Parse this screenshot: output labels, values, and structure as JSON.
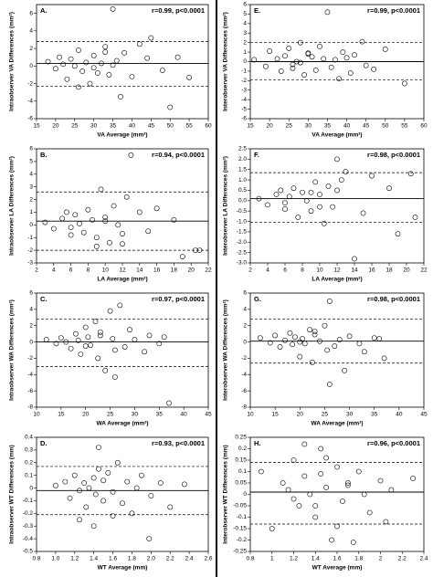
{
  "chart_data": [
    {
      "type": "scatter",
      "label": "A.",
      "annotation": "r=0.99, p<0.0001",
      "xlabel": "VA Average (mm²)",
      "ylabel": "Intraobserver VA Differences (mm²)",
      "xlim": [
        15,
        60
      ],
      "xticks": [
        15,
        20,
        25,
        30,
        35,
        40,
        45,
        50,
        55,
        60
      ],
      "ylim": [
        -6,
        7
      ],
      "yticks": [
        -6,
        -4,
        -2,
        0,
        2,
        4,
        6
      ],
      "mean_line": 0.3,
      "limit_lines": [
        2.8,
        -2.3
      ],
      "x": [
        18,
        20,
        21,
        22,
        23,
        24,
        25,
        26,
        27,
        28,
        29,
        30,
        31,
        32,
        33,
        34,
        35,
        36,
        37,
        38,
        40,
        42,
        44,
        45,
        48,
        50,
        52,
        55,
        30,
        26,
        35,
        33
      ],
      "values": [
        0.5,
        -0.3,
        1.0,
        0.2,
        -1.5,
        0.8,
        0.0,
        1.8,
        -0.6,
        0.4,
        -2.0,
        1.2,
        -0.8,
        0.3,
        2.2,
        -1.0,
        6.5,
        0.6,
        -3.5,
        1.5,
        -1.2,
        2.5,
        0.9,
        3.2,
        -0.5,
        -4.7,
        1.0,
        -1.3,
        -0.2,
        -2.4,
        0.1,
        1.6
      ]
    },
    {
      "type": "scatter",
      "label": "E.",
      "annotation": "r=0.99, p<0.0001",
      "xlabel": "VA Average (mm²)",
      "ylabel": "Interobserver VA Differences (mm²)",
      "xlim": [
        15,
        60
      ],
      "xticks": [
        15,
        20,
        25,
        30,
        35,
        40,
        45,
        50,
        55,
        60
      ],
      "ylim": [
        -6,
        6
      ],
      "yticks": [
        -6,
        -5,
        -4,
        -3,
        -2,
        -1,
        0,
        1,
        2,
        3,
        4,
        5,
        6
      ],
      "mean_line": 0.0,
      "limit_lines": [
        2.0,
        -1.9
      ],
      "x": [
        16,
        19,
        20,
        22,
        23,
        24,
        25,
        26,
        27,
        28,
        29,
        30,
        31,
        32,
        33,
        35,
        36,
        37,
        38,
        39,
        40,
        41,
        42,
        44,
        45,
        47,
        50,
        55,
        30,
        28,
        34,
        26
      ],
      "values": [
        0.2,
        -0.5,
        1.1,
        0.3,
        -1.0,
        0.6,
        1.4,
        -0.3,
        0.0,
        2.0,
        -1.4,
        0.8,
        0.5,
        -0.9,
        1.6,
        5.2,
        -0.6,
        0.2,
        -1.8,
        1.0,
        0.4,
        -1.2,
        0.7,
        2.1,
        -0.4,
        -0.8,
        1.3,
        -2.3,
        0.9,
        -0.1,
        0.3,
        -0.7
      ]
    },
    {
      "type": "scatter",
      "label": "B.",
      "annotation": "r=0.94, p<0.0001",
      "xlabel": "LA Average (mm²)",
      "ylabel": "Intraobserver LA Differences (mm²)",
      "xlim": [
        2,
        22
      ],
      "xticks": [
        2,
        4,
        6,
        8,
        10,
        12,
        14,
        16,
        18,
        20,
        22
      ],
      "ylim": [
        -3,
        6
      ],
      "yticks": [
        -3,
        -2,
        -1,
        0,
        1,
        2,
        3,
        4,
        5,
        6
      ],
      "mean_line": 0.3,
      "limit_lines": [
        2.6,
        -2.0
      ],
      "x": [
        3,
        4,
        5,
        5.5,
        6,
        6.5,
        7,
        7.5,
        8,
        8.5,
        9,
        9.5,
        10,
        10.5,
        11,
        11.5,
        12,
        12.5,
        13,
        14,
        15,
        16,
        18,
        19,
        20.5,
        21,
        6,
        9,
        10,
        12
      ],
      "values": [
        0.2,
        -0.3,
        0.5,
        1.0,
        -0.2,
        0.8,
        0.1,
        -0.6,
        1.2,
        0.4,
        -1.0,
        2.8,
        0.3,
        -1.4,
        1.5,
        0.0,
        -0.7,
        2.2,
        5.5,
        1.0,
        -0.5,
        1.3,
        0.4,
        -2.5,
        -2.0,
        -2.0,
        -0.8,
        -1.7,
        0.6,
        -1.5
      ]
    },
    {
      "type": "scatter",
      "label": "F.",
      "annotation": "r=0.98, p<0.0001",
      "xlabel": "LA Average (mm²)",
      "ylabel": "Interobserver LA Differences (mm²)",
      "xlim": [
        2,
        22
      ],
      "xticks": [
        2,
        4,
        6,
        8,
        10,
        12,
        14,
        16,
        18,
        20,
        22
      ],
      "ylim": [
        -3,
        2.5
      ],
      "yticks": [
        {
          "value": -3,
          "label": "-3.0"
        },
        -2.5,
        {
          "value": -2,
          "label": "-2.0"
        },
        -1.5,
        {
          "value": -1,
          "label": "-1.0"
        },
        -0.5,
        {
          "value": 0,
          "label": "0.0"
        },
        0.5,
        {
          "value": 1,
          "label": "1.0"
        },
        1.5,
        {
          "value": 2,
          "label": "2.0"
        },
        2.5
      ],
      "mean_line": 0.1,
      "limit_lines": [
        1.35,
        -1.05
      ],
      "x": [
        3,
        4,
        5,
        5.5,
        6,
        6.5,
        7,
        7.5,
        8,
        8.5,
        9,
        9.5,
        10,
        10.5,
        11,
        11.5,
        12,
        12.5,
        13,
        14,
        15,
        16,
        18,
        19,
        20.5,
        21,
        6,
        9,
        10,
        12
      ],
      "values": [
        0.1,
        -0.2,
        0.3,
        0.5,
        -0.4,
        0.2,
        0.6,
        -0.8,
        0.4,
        0.0,
        -0.5,
        0.9,
        0.3,
        -1.1,
        0.7,
        -0.3,
        0.5,
        1.0,
        1.4,
        -2.8,
        -0.6,
        1.2,
        0.6,
        -1.6,
        1.3,
        -0.8,
        -0.1,
        0.4,
        -0.3,
        2.0
      ]
    },
    {
      "type": "scatter",
      "label": "C.",
      "annotation": "r=0.97, p<0.0001",
      "xlabel": "WA Average (mm²)",
      "ylabel": "Intraobserver WA Differences (mm²)",
      "xlim": [
        10,
        45
      ],
      "xticks": [
        10,
        15,
        20,
        25,
        30,
        35,
        40,
        45
      ],
      "ylim": [
        -8,
        6
      ],
      "yticks": [
        -8,
        -6,
        -4,
        -2,
        0,
        2,
        4,
        6
      ],
      "mean_line": 0.0,
      "limit_lines": [
        2.8,
        -3.0
      ],
      "x": [
        12,
        14,
        15,
        16,
        17,
        18,
        18.5,
        19,
        20,
        20.5,
        21,
        22,
        22.5,
        23,
        24,
        25,
        25.5,
        26,
        27,
        28,
        29,
        30,
        32,
        33,
        35,
        37,
        20,
        23,
        26,
        36
      ],
      "values": [
        0.3,
        -0.2,
        0.5,
        0.0,
        -0.8,
        1.0,
        0.2,
        -1.5,
        1.8,
        0.6,
        -0.4,
        2.5,
        -2.0,
        1.2,
        -3.5,
        3.8,
        0.4,
        -1.0,
        4.5,
        -0.6,
        1.5,
        0.3,
        -1.2,
        0.8,
        -0.2,
        -7.5,
        -0.5,
        0.8,
        -4.3,
        0.6
      ]
    },
    {
      "type": "scatter",
      "label": "G.",
      "annotation": "r=0.98, p<0.0001",
      "xlabel": "WA Average (mm²)",
      "ylabel": "Interobserver WA Differences (mm²)",
      "xlim": [
        10,
        45
      ],
      "xticks": [
        10,
        15,
        20,
        25,
        30,
        35,
        40,
        45
      ],
      "ylim": [
        -8,
        6
      ],
      "yticks": [
        -8,
        -6,
        -4,
        -2,
        0,
        2,
        4,
        6
      ],
      "mean_line": 0.1,
      "limit_lines": [
        2.8,
        -2.6
      ],
      "x": [
        12,
        14,
        15,
        16,
        17,
        18,
        18.5,
        19,
        20,
        20.5,
        21,
        22,
        22.5,
        23,
        24,
        25,
        25.5,
        26,
        27,
        28,
        29,
        30,
        32,
        33,
        35,
        37,
        20,
        23,
        26,
        36
      ],
      "values": [
        0.5,
        -0.1,
        0.8,
        -0.6,
        0.2,
        1.1,
        -0.3,
        0.6,
        -1.8,
        0.4,
        -0.2,
        1.5,
        -2.5,
        0.9,
        0.1,
        2.0,
        -1.0,
        5.0,
        -0.5,
        0.3,
        -3.5,
        0.7,
        -0.2,
        -1.2,
        0.5,
        -2.0,
        0.0,
        1.3,
        -5.2,
        0.4
      ]
    },
    {
      "type": "scatter",
      "label": "D.",
      "annotation": "r=0.93, p<0.0001",
      "xlabel": "WT Average (mm)",
      "ylabel": "Intraobserver WT Differences (mm)",
      "xlim": [
        0.8,
        2.6
      ],
      "xticks": [
        0.8,
        {
          "value": 1,
          "label": "1.0"
        },
        1.2,
        1.4,
        1.6,
        1.8,
        {
          "value": 2,
          "label": "2.0"
        },
        2.2,
        2.4,
        2.6
      ],
      "ylim": [
        -0.5,
        0.4
      ],
      "yticks": [
        -0.5,
        -0.4,
        -0.3,
        -0.2,
        -0.1,
        0,
        0.1,
        0.2,
        0.3,
        0.4
      ],
      "mean_line": -0.02,
      "limit_lines": [
        0.17,
        -0.21
      ],
      "x": [
        1.0,
        1.1,
        1.15,
        1.2,
        1.25,
        1.3,
        1.32,
        1.35,
        1.4,
        1.42,
        1.45,
        1.5,
        1.55,
        1.6,
        1.65,
        1.7,
        1.75,
        1.8,
        1.85,
        1.9,
        2.0,
        2.1,
        2.2,
        2.35,
        1.25,
        1.4,
        1.5,
        1.6,
        1.98,
        1.45
      ],
      "values": [
        0.02,
        0.05,
        -0.08,
        0.1,
        -0.02,
        0.04,
        -0.15,
        0.0,
        0.08,
        -0.05,
        0.32,
        -0.1,
        0.12,
        -0.03,
        0.2,
        -0.12,
        0.05,
        -0.2,
        0.0,
        0.1,
        -0.06,
        0.04,
        -0.15,
        0.03,
        -0.25,
        -0.3,
        0.06,
        -0.22,
        -0.4,
        0.15
      ]
    },
    {
      "type": "scatter",
      "label": "H.",
      "annotation": "r=0.96, p<0.0001",
      "xlabel": "WT Average (mm)",
      "ylabel": "Interobserver WT Differences (mm)",
      "xlim": [
        0.8,
        2.4
      ],
      "xticks": [
        0.8,
        1,
        1.2,
        1.4,
        1.6,
        1.8,
        2,
        2.2,
        2.4
      ],
      "ylim": [
        -0.25,
        0.25
      ],
      "yticks": [
        -0.25,
        -0.2,
        -0.15,
        -0.1,
        -0.05,
        0,
        0.05,
        0.1,
        0.15,
        0.2,
        0.25
      ],
      "mean_line": 0.01,
      "limit_lines": [
        0.14,
        -0.13
      ],
      "x": [
        0.9,
        1.0,
        1.1,
        1.15,
        1.2,
        1.25,
        1.3,
        1.35,
        1.4,
        1.45,
        1.5,
        1.55,
        1.6,
        1.65,
        1.7,
        1.75,
        1.8,
        1.85,
        1.9,
        2.0,
        2.05,
        2.1,
        2.3,
        1.3,
        1.4,
        1.5,
        1.6,
        1.7,
        1.2,
        1.45
      ],
      "values": [
        0.1,
        -0.15,
        0.05,
        0.02,
        0.15,
        -0.05,
        0.08,
        0.0,
        -0.1,
        0.2,
        0.03,
        -0.2,
        0.12,
        -0.03,
        0.05,
        -0.21,
        0.1,
        0.0,
        -0.08,
        0.06,
        -0.12,
        0.02,
        0.07,
        0.22,
        -0.05,
        0.16,
        -0.14,
        0.04,
        -0.02,
        0.09
      ]
    }
  ]
}
